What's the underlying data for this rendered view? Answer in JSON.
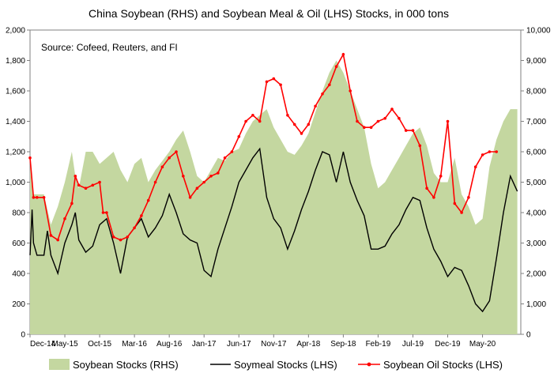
{
  "chart_data": {
    "type": "bar+line",
    "title": "China Soybean (RHS) and Soybean Meal & Oil (LHS) Stocks, in 000 tons",
    "annotation": "Source: Cofeed, Reuters, and FI",
    "x_tick_labels": [
      "Dec-14",
      "May-15",
      "Oct-15",
      "Mar-16",
      "Aug-16",
      "Jan-17",
      "Jun-17",
      "Nov-17",
      "Apr-18",
      "Sep-18",
      "Feb-19",
      "Jul-19",
      "Dec-19",
      "May-20"
    ],
    "y_left": {
      "min": 0,
      "max": 2000,
      "step": 200,
      "tick_labels": [
        "0",
        "200",
        "400",
        "600",
        "800",
        "1,000",
        "1,200",
        "1,400",
        "1,600",
        "1,800",
        "2,000"
      ]
    },
    "y_right": {
      "min": 0,
      "max": 10000,
      "step": 1000,
      "tick_labels": [
        "0",
        "1,000",
        "2,000",
        "3,000",
        "4,000",
        "5,000",
        "6,000",
        "7,000",
        "8,000",
        "9,000",
        "10,000"
      ]
    },
    "colors": {
      "soybean": "#c4d7a0",
      "soymeal": "#000000",
      "oil": "#ff0000"
    },
    "legend_position": "bottom",
    "x_unit": "month index from Dec-14 (0 = Dec-14, 5 = May-15)",
    "series": [
      {
        "name": "Soybean Stocks (RHS)",
        "kind": "area",
        "axis": "right",
        "points": [
          [
            0,
            5600
          ],
          [
            0.4,
            4600
          ],
          [
            1,
            4600
          ],
          [
            2,
            4600
          ],
          [
            3,
            3600
          ],
          [
            4,
            4200
          ],
          [
            5,
            5000
          ],
          [
            6,
            6000
          ],
          [
            6.5,
            5200
          ],
          [
            7,
            4800
          ],
          [
            8,
            6000
          ],
          [
            9,
            6000
          ],
          [
            10,
            5600
          ],
          [
            11,
            5800
          ],
          [
            12,
            6000
          ],
          [
            13,
            5400
          ],
          [
            14,
            5000
          ],
          [
            15,
            5600
          ],
          [
            16,
            5800
          ],
          [
            17,
            5000
          ],
          [
            18,
            5400
          ],
          [
            19,
            5700
          ],
          [
            20,
            6000
          ],
          [
            21,
            6400
          ],
          [
            22,
            6700
          ],
          [
            23,
            6000
          ],
          [
            24,
            5200
          ],
          [
            25,
            5000
          ],
          [
            26,
            5400
          ],
          [
            27,
            5800
          ],
          [
            28,
            5700
          ],
          [
            29,
            6000
          ],
          [
            30,
            6100
          ],
          [
            31,
            6600
          ],
          [
            32,
            7000
          ],
          [
            33,
            7200
          ],
          [
            34,
            7400
          ],
          [
            35,
            6800
          ],
          [
            36,
            6400
          ],
          [
            37,
            6000
          ],
          [
            38,
            5900
          ],
          [
            39,
            6200
          ],
          [
            40,
            6600
          ],
          [
            41,
            7300
          ],
          [
            42,
            8000
          ],
          [
            43,
            8600
          ],
          [
            44,
            9000
          ],
          [
            45,
            8600
          ],
          [
            46,
            8000
          ],
          [
            47,
            7400
          ],
          [
            48,
            6800
          ],
          [
            49,
            5600
          ],
          [
            50,
            4800
          ],
          [
            51,
            5000
          ],
          [
            52,
            5400
          ],
          [
            53,
            5800
          ],
          [
            54,
            6200
          ],
          [
            55,
            6600
          ],
          [
            56,
            6800
          ],
          [
            57,
            6200
          ],
          [
            58,
            5300
          ],
          [
            59,
            5000
          ],
          [
            60,
            5000
          ],
          [
            61,
            5800
          ],
          [
            62,
            4600
          ],
          [
            63,
            4200
          ],
          [
            64,
            3600
          ],
          [
            65,
            3800
          ],
          [
            66,
            5500
          ],
          [
            67,
            6400
          ],
          [
            68,
            7000
          ],
          [
            69,
            7400
          ],
          [
            70,
            7400
          ]
        ]
      },
      {
        "name": "Soymeal Stocks (LHS)",
        "kind": "line",
        "axis": "left",
        "points": [
          [
            0,
            520
          ],
          [
            0.3,
            820
          ],
          [
            0.5,
            600
          ],
          [
            1,
            520
          ],
          [
            2,
            520
          ],
          [
            2.5,
            680
          ],
          [
            3,
            520
          ],
          [
            4,
            400
          ],
          [
            5,
            600
          ],
          [
            6,
            720
          ],
          [
            6.5,
            800
          ],
          [
            7,
            620
          ],
          [
            8,
            540
          ],
          [
            9,
            580
          ],
          [
            10,
            720
          ],
          [
            11,
            760
          ],
          [
            12,
            600
          ],
          [
            13,
            400
          ],
          [
            14,
            640
          ],
          [
            15,
            700
          ],
          [
            16,
            760
          ],
          [
            17,
            640
          ],
          [
            18,
            700
          ],
          [
            19,
            780
          ],
          [
            20,
            920
          ],
          [
            21,
            800
          ],
          [
            22,
            660
          ],
          [
            23,
            620
          ],
          [
            24,
            600
          ],
          [
            25,
            420
          ],
          [
            26,
            380
          ],
          [
            27,
            560
          ],
          [
            28,
            700
          ],
          [
            29,
            840
          ],
          [
            30,
            1000
          ],
          [
            31,
            1080
          ],
          [
            32,
            1160
          ],
          [
            33,
            1220
          ],
          [
            34,
            900
          ],
          [
            35,
            760
          ],
          [
            36,
            700
          ],
          [
            37,
            560
          ],
          [
            38,
            680
          ],
          [
            39,
            820
          ],
          [
            40,
            940
          ],
          [
            41,
            1080
          ],
          [
            42,
            1200
          ],
          [
            43,
            1180
          ],
          [
            44,
            1000
          ],
          [
            45,
            1200
          ],
          [
            46,
            1000
          ],
          [
            47,
            880
          ],
          [
            48,
            780
          ],
          [
            49,
            560
          ],
          [
            50,
            560
          ],
          [
            51,
            580
          ],
          [
            52,
            660
          ],
          [
            53,
            720
          ],
          [
            54,
            820
          ],
          [
            55,
            900
          ],
          [
            56,
            880
          ],
          [
            57,
            700
          ],
          [
            58,
            560
          ],
          [
            59,
            480
          ],
          [
            60,
            380
          ],
          [
            61,
            440
          ],
          [
            62,
            420
          ],
          [
            63,
            320
          ],
          [
            64,
            200
          ],
          [
            65,
            150
          ],
          [
            66,
            220
          ],
          [
            67,
            500
          ],
          [
            68,
            800
          ],
          [
            69,
            1040
          ],
          [
            70,
            940
          ]
        ]
      },
      {
        "name": "Soybean Oil Stocks (LHS)",
        "kind": "line-markers",
        "axis": "left",
        "points": [
          [
            0,
            1160
          ],
          [
            0.5,
            900
          ],
          [
            1,
            900
          ],
          [
            2,
            900
          ],
          [
            3,
            650
          ],
          [
            4,
            620
          ],
          [
            5,
            760
          ],
          [
            6,
            860
          ],
          [
            6.5,
            1040
          ],
          [
            7,
            980
          ],
          [
            8,
            960
          ],
          [
            9,
            980
          ],
          [
            10,
            1000
          ],
          [
            10.5,
            800
          ],
          [
            11,
            800
          ],
          [
            12,
            640
          ],
          [
            13,
            620
          ],
          [
            14,
            640
          ],
          [
            15,
            700
          ],
          [
            16,
            780
          ],
          [
            17,
            880
          ],
          [
            18,
            1000
          ],
          [
            19,
            1100
          ],
          [
            20,
            1160
          ],
          [
            21,
            1200
          ],
          [
            22,
            1040
          ],
          [
            23,
            900
          ],
          [
            24,
            960
          ],
          [
            25,
            1000
          ],
          [
            26,
            1040
          ],
          [
            27,
            1060
          ],
          [
            28,
            1160
          ],
          [
            29,
            1200
          ],
          [
            30,
            1300
          ],
          [
            31,
            1400
          ],
          [
            32,
            1440
          ],
          [
            33,
            1400
          ],
          [
            34,
            1660
          ],
          [
            35,
            1680
          ],
          [
            36,
            1640
          ],
          [
            37,
            1440
          ],
          [
            38,
            1380
          ],
          [
            39,
            1320
          ],
          [
            40,
            1380
          ],
          [
            41,
            1500
          ],
          [
            42,
            1580
          ],
          [
            43,
            1640
          ],
          [
            44,
            1760
          ],
          [
            45,
            1840
          ],
          [
            46,
            1600
          ],
          [
            47,
            1400
          ],
          [
            48,
            1360
          ],
          [
            49,
            1360
          ],
          [
            50,
            1400
          ],
          [
            51,
            1420
          ],
          [
            52,
            1480
          ],
          [
            53,
            1420
          ],
          [
            54,
            1340
          ],
          [
            55,
            1340
          ],
          [
            56,
            1240
          ],
          [
            57,
            960
          ],
          [
            58,
            900
          ],
          [
            59,
            1040
          ],
          [
            60,
            1400
          ],
          [
            61,
            860
          ],
          [
            62,
            800
          ],
          [
            63,
            900
          ],
          [
            64,
            1100
          ],
          [
            65,
            1180
          ],
          [
            66,
            1200
          ],
          [
            67,
            1200
          ]
        ]
      }
    ]
  }
}
